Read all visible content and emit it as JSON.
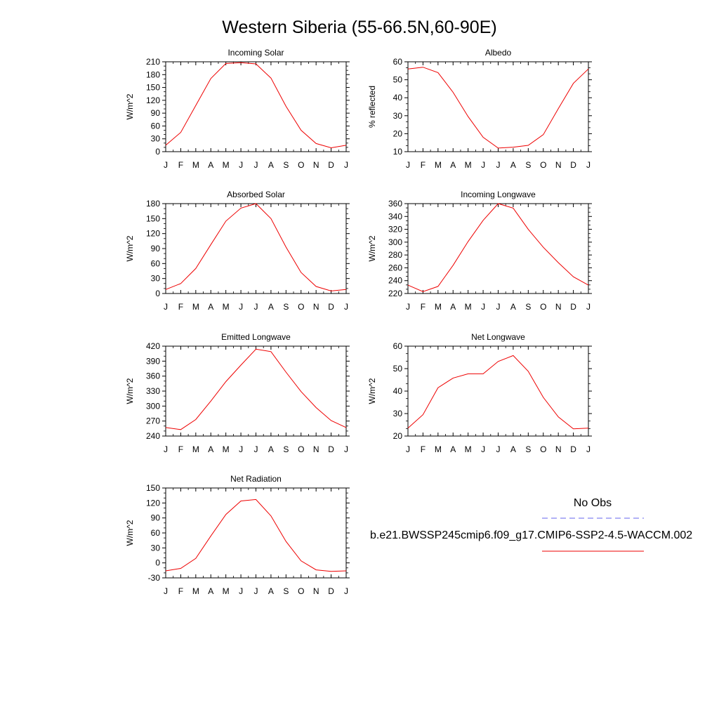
{
  "title": "Western Siberia (55-66.5N,60-90E)",
  "legend": {
    "obs_label": "No Obs",
    "obs_color": "#6666ee",
    "model_label": "b.e21.BWSSP245cmip6.f09_g17.CMIP6-SSP2-4.5-WACCM.002",
    "model_color": "#ee0000"
  },
  "chart_data": [
    {
      "type": "line",
      "title": "Incoming Solar",
      "ylabel": "W/m^2",
      "categories": [
        "J",
        "F",
        "M",
        "A",
        "M",
        "J",
        "J",
        "A",
        "S",
        "O",
        "N",
        "D",
        "J"
      ],
      "ylim": [
        0,
        210
      ],
      "yticks": [
        0,
        30,
        60,
        90,
        120,
        150,
        180,
        210
      ],
      "values": [
        15,
        45,
        108,
        171,
        206,
        208,
        205,
        172,
        106,
        50,
        19,
        9,
        15
      ]
    },
    {
      "type": "line",
      "title": "Albedo",
      "ylabel": "% reflected",
      "categories": [
        "J",
        "F",
        "M",
        "A",
        "M",
        "J",
        "J",
        "A",
        "S",
        "O",
        "N",
        "D",
        "J"
      ],
      "ylim": [
        10,
        60
      ],
      "yticks": [
        10,
        20,
        30,
        40,
        50,
        60
      ],
      "values": [
        56,
        57,
        54,
        43,
        29.5,
        18,
        12,
        12.5,
        13.5,
        19.5,
        34,
        48,
        56
      ]
    },
    {
      "type": "line",
      "title": "Absorbed Solar",
      "ylabel": "W/m^2",
      "categories": [
        "J",
        "F",
        "M",
        "A",
        "M",
        "J",
        "J",
        "A",
        "S",
        "O",
        "N",
        "D",
        "J"
      ],
      "ylim": [
        0,
        180
      ],
      "yticks": [
        0,
        30,
        60,
        90,
        120,
        150,
        180
      ],
      "values": [
        8,
        20,
        50,
        98,
        145,
        171,
        180,
        150,
        93,
        42,
        14,
        5,
        8
      ]
    },
    {
      "type": "line",
      "title": "Incoming Longwave",
      "ylabel": "W/m^2",
      "categories": [
        "J",
        "F",
        "M",
        "A",
        "M",
        "J",
        "J",
        "A",
        "S",
        "O",
        "N",
        "D",
        "J"
      ],
      "ylim": [
        220,
        360
      ],
      "yticks": [
        220,
        240,
        260,
        280,
        300,
        320,
        340,
        360
      ],
      "values": [
        233,
        223,
        231,
        264,
        301,
        334,
        360,
        353,
        320,
        292,
        268,
        246,
        233
      ]
    },
    {
      "type": "line",
      "title": "Emitted Longwave",
      "ylabel": "W/m^2",
      "categories": [
        "J",
        "F",
        "M",
        "A",
        "M",
        "J",
        "J",
        "A",
        "S",
        "O",
        "N",
        "D",
        "J"
      ],
      "ylim": [
        240,
        420
      ],
      "yticks": [
        240,
        270,
        300,
        330,
        360,
        390,
        420
      ],
      "values": [
        257,
        253,
        273,
        310,
        349,
        382,
        414,
        409,
        368,
        329,
        297,
        271,
        257
      ]
    },
    {
      "type": "line",
      "title": "Net Longwave",
      "ylabel": "W/m^2",
      "categories": [
        "J",
        "F",
        "M",
        "A",
        "M",
        "J",
        "J",
        "A",
        "S",
        "O",
        "N",
        "D",
        "J"
      ],
      "ylim": [
        20,
        60
      ],
      "yticks": [
        20,
        30,
        40,
        50,
        60
      ],
      "values": [
        23.5,
        29.5,
        41.5,
        45.8,
        47.7,
        47.7,
        53.2,
        55.8,
        48.8,
        37.2,
        28.5,
        23.2,
        23.5
      ]
    },
    {
      "type": "line",
      "title": "Net Radiation",
      "ylabel": "W/m^2",
      "categories": [
        "J",
        "F",
        "M",
        "A",
        "M",
        "J",
        "J",
        "A",
        "S",
        "O",
        "N",
        "D",
        "J"
      ],
      "ylim": [
        -30,
        150
      ],
      "yticks": [
        -30,
        0,
        30,
        60,
        90,
        120,
        150
      ],
      "values": [
        -16,
        -11,
        9,
        54,
        97,
        124,
        127,
        94,
        43,
        4,
        -14,
        -17,
        -16
      ]
    }
  ]
}
